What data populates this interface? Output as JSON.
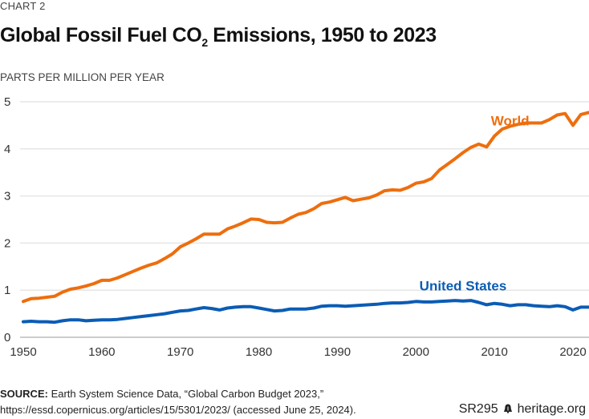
{
  "header": {
    "kicker": "CHART 2",
    "title_pre": "Global Fossil Fuel CO",
    "title_sub": "2",
    "title_post": " Emissions, 1950 to 2023",
    "unit_label": "PARTS PER MILLION PER YEAR"
  },
  "footer": {
    "source_label": "SOURCE:",
    "source_line1": " Earth System Science Data, “Global Carbon Budget 2023,”",
    "source_line2": "https://essd.copernicus.org/articles/15/5301/2023/ (accessed June 25, 2024).",
    "report_id": "SR295",
    "brand_icon": "liberty-bell-icon",
    "brand_text": "heritage.org"
  },
  "chart_data": {
    "type": "line",
    "title": "Global Fossil Fuel CO2 Emissions, 1950 to 2023",
    "xlabel": "",
    "ylabel": "PARTS PER MILLION PER YEAR",
    "xlim": [
      1950,
      2023
    ],
    "ylim": [
      0,
      5
    ],
    "grid": true,
    "x_ticks": [
      1950,
      1960,
      1970,
      1980,
      1990,
      2000,
      2010,
      2020
    ],
    "y_ticks": [
      0,
      1,
      2,
      3,
      4,
      5
    ],
    "legend": "inline-labels",
    "x": [
      1950,
      1951,
      1952,
      1953,
      1954,
      1955,
      1956,
      1957,
      1958,
      1959,
      1960,
      1961,
      1962,
      1963,
      1964,
      1965,
      1966,
      1967,
      1968,
      1969,
      1970,
      1971,
      1972,
      1973,
      1974,
      1975,
      1976,
      1977,
      1978,
      1979,
      1980,
      1981,
      1982,
      1983,
      1984,
      1985,
      1986,
      1987,
      1988,
      1989,
      1990,
      1991,
      1992,
      1993,
      1994,
      1995,
      1996,
      1997,
      1998,
      1999,
      2000,
      2001,
      2002,
      2003,
      2004,
      2005,
      2006,
      2007,
      2008,
      2009,
      2010,
      2011,
      2012,
      2013,
      2014,
      2015,
      2016,
      2017,
      2018,
      2019,
      2020,
      2021,
      2022
    ],
    "series": [
      {
        "name": "World",
        "color": "#ED6E0E",
        "label_year": 2012,
        "label_value": 4.6,
        "values": [
          0.76,
          0.82,
          0.83,
          0.85,
          0.87,
          0.96,
          1.02,
          1.05,
          1.09,
          1.14,
          1.21,
          1.21,
          1.26,
          1.33,
          1.4,
          1.47,
          1.53,
          1.58,
          1.67,
          1.77,
          1.92,
          2.0,
          2.09,
          2.19,
          2.19,
          2.19,
          2.3,
          2.36,
          2.43,
          2.51,
          2.5,
          2.44,
          2.43,
          2.44,
          2.53,
          2.61,
          2.65,
          2.73,
          2.84,
          2.87,
          2.92,
          2.97,
          2.9,
          2.93,
          2.96,
          3.02,
          3.11,
          3.13,
          3.12,
          3.18,
          3.27,
          3.3,
          3.37,
          3.55,
          3.67,
          3.79,
          3.92,
          4.03,
          4.1,
          4.04,
          4.27,
          4.42,
          4.48,
          4.52,
          4.55,
          4.55,
          4.55,
          4.62,
          4.72,
          4.75,
          4.5,
          4.73,
          4.77
        ]
      },
      {
        "name": "United States",
        "color": "#0B5CB5",
        "label_year": 2006,
        "label_value": 1.1,
        "values": [
          0.33,
          0.34,
          0.33,
          0.33,
          0.32,
          0.35,
          0.37,
          0.37,
          0.35,
          0.36,
          0.37,
          0.37,
          0.38,
          0.4,
          0.42,
          0.44,
          0.46,
          0.48,
          0.5,
          0.53,
          0.56,
          0.57,
          0.6,
          0.63,
          0.61,
          0.58,
          0.62,
          0.64,
          0.65,
          0.65,
          0.62,
          0.59,
          0.56,
          0.57,
          0.6,
          0.6,
          0.6,
          0.62,
          0.66,
          0.67,
          0.67,
          0.66,
          0.67,
          0.68,
          0.69,
          0.7,
          0.72,
          0.73,
          0.73,
          0.74,
          0.76,
          0.75,
          0.75,
          0.76,
          0.77,
          0.78,
          0.77,
          0.78,
          0.74,
          0.69,
          0.72,
          0.7,
          0.67,
          0.69,
          0.69,
          0.67,
          0.66,
          0.65,
          0.67,
          0.65,
          0.58,
          0.64,
          0.64
        ]
      }
    ]
  }
}
